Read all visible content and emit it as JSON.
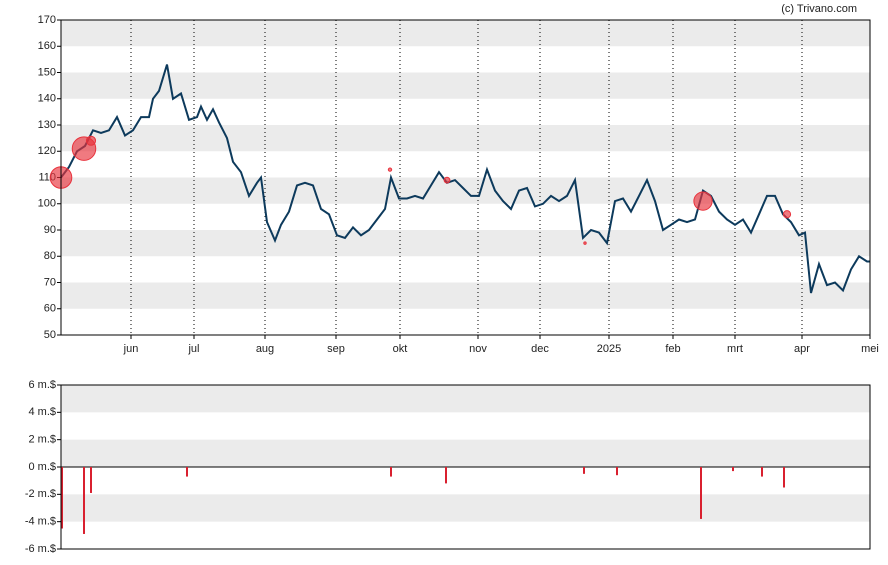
{
  "chart_data": [
    {
      "type": "line",
      "credit": "(c) Trivano.com",
      "color": "#0d3a5c",
      "x": [
        0,
        8,
        16,
        24,
        32,
        40,
        48,
        56,
        64,
        72,
        80,
        88,
        92,
        98,
        106,
        112,
        120,
        128,
        136,
        140,
        146,
        152,
        158,
        166,
        172,
        180,
        188,
        196,
        200,
        206,
        214,
        220,
        228,
        236,
        244,
        252,
        260,
        268,
        276,
        284,
        292,
        300,
        308,
        316,
        324,
        330,
        338,
        346,
        354,
        362,
        370,
        378,
        386,
        394,
        402,
        410,
        418,
        426,
        434,
        442,
        450,
        458,
        466,
        474,
        482,
        490,
        498,
        506,
        514,
        522,
        530,
        538,
        546,
        554,
        562,
        570,
        578,
        586,
        594,
        602,
        610,
        618,
        626,
        634,
        642,
        650,
        658,
        666,
        674,
        682,
        690,
        698,
        706,
        714,
        722,
        730,
        738,
        744,
        750,
        758,
        766,
        774,
        782,
        790,
        798,
        806,
        809
      ],
      "values": [
        110,
        114,
        120,
        122,
        128,
        127,
        128,
        133,
        126,
        128,
        133,
        133,
        140,
        143,
        153,
        140,
        142,
        132,
        133,
        137,
        132,
        136,
        131,
        125,
        116,
        112,
        103,
        108,
        110,
        93,
        86,
        92,
        97,
        107,
        108,
        107,
        98,
        96,
        88,
        87,
        91,
        88,
        90,
        94,
        98,
        110,
        102,
        102,
        103,
        102,
        107,
        112,
        108,
        109,
        106,
        103,
        103,
        113,
        105,
        101,
        98,
        105,
        106,
        99,
        100,
        103,
        101,
        103,
        109,
        87,
        90,
        89,
        85,
        101,
        102,
        97,
        103,
        109,
        101,
        90,
        92,
        94,
        93,
        94,
        105,
        103,
        97,
        94,
        92,
        94,
        89,
        96,
        103,
        103,
        96,
        93,
        88,
        89,
        66,
        77,
        69,
        70,
        67,
        75,
        80,
        78,
        78
      ],
      "markers": {
        "color": "#e8323c",
        "x": [
          0,
          23,
          30,
          329,
          386,
          524,
          642,
          726
        ],
        "values": [
          110,
          121,
          124,
          113,
          109,
          85,
          101,
          96
        ],
        "sizes": [
          4.5,
          4.9,
          1.9,
          0.7,
          1.2,
          0.5,
          3.8,
          1.5
        ]
      },
      "xlim": [
        0,
        809
      ],
      "xticks": [
        {
          "value": 70,
          "label": "jun"
        },
        {
          "value": 133,
          "label": "jul"
        },
        {
          "value": 204,
          "label": "aug"
        },
        {
          "value": 275,
          "label": "sep"
        },
        {
          "value": 339,
          "label": "okt"
        },
        {
          "value": 417,
          "label": "nov"
        },
        {
          "value": 479,
          "label": "dec"
        },
        {
          "value": 548,
          "label": "2025"
        },
        {
          "value": 612,
          "label": "feb"
        },
        {
          "value": 674,
          "label": "mrt"
        },
        {
          "value": 741,
          "label": "apr"
        },
        {
          "value": 809,
          "label": "mei"
        }
      ],
      "ylim": [
        50,
        170
      ],
      "yticks": [
        50,
        60,
        70,
        80,
        90,
        100,
        110,
        120,
        130,
        140,
        150,
        160,
        170
      ],
      "grid": true
    },
    {
      "type": "bar",
      "color": "#d9202f",
      "x": [
        1,
        23,
        30,
        126,
        330,
        385,
        523,
        556,
        640,
        672,
        701,
        723
      ],
      "values": [
        -4.5,
        -4.9,
        -1.9,
        -0.7,
        -0.7,
        -1.2,
        -0.5,
        -0.6,
        -3.8,
        -0.3,
        -0.7,
        -1.5
      ],
      "xlim": [
        0,
        809
      ],
      "ylim": [
        -6,
        6
      ],
      "yticks": [
        {
          "value": -6,
          "label": "-6 m.$"
        },
        {
          "value": -4,
          "label": "-4 m.$"
        },
        {
          "value": -2,
          "label": "-2 m.$"
        },
        {
          "value": 0,
          "label": "0 m.$"
        },
        {
          "value": 2,
          "label": "2 m.$"
        },
        {
          "value": 4,
          "label": "4 m.$"
        },
        {
          "value": 6,
          "label": "6 m.$"
        }
      ],
      "grid": true
    }
  ]
}
